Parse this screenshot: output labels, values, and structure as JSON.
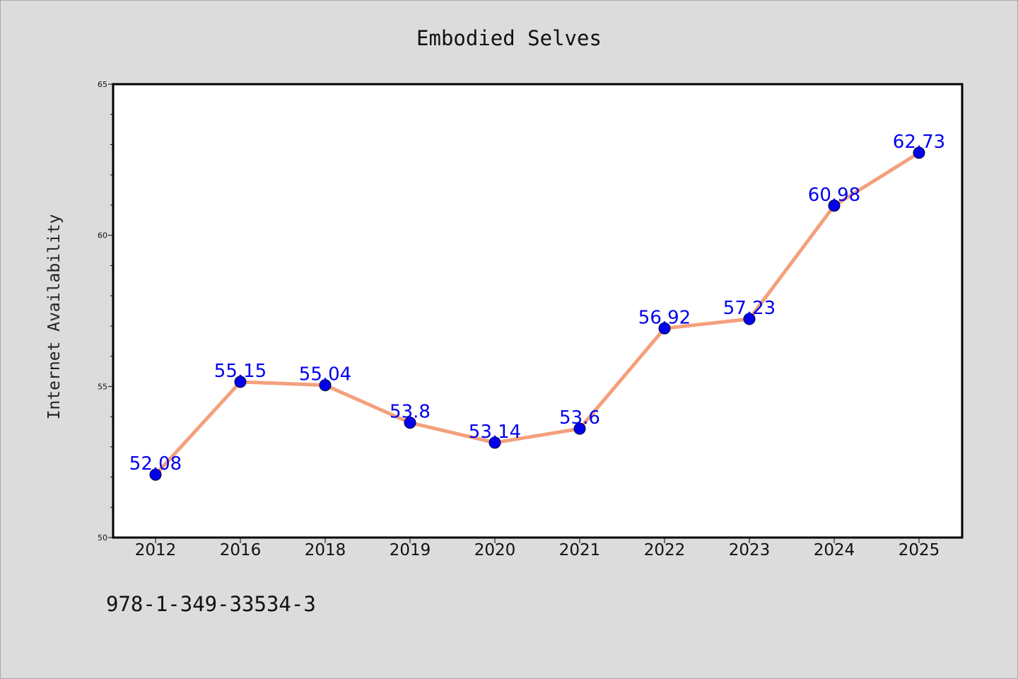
{
  "chart_data": {
    "type": "line",
    "title": "Embodied Selves",
    "xlabel": "",
    "ylabel": "Internet Availability",
    "categories": [
      "2012",
      "2016",
      "2018",
      "2019",
      "2020",
      "2021",
      "2022",
      "2023",
      "2024",
      "2025"
    ],
    "series": [
      {
        "values": [
          52.08,
          55.15,
          55.04,
          53.8,
          53.14,
          53.6,
          56.92,
          57.23,
          60.98,
          62.73
        ],
        "data_labels": [
          "52.08",
          "55.15",
          "55.04",
          "53.8",
          "53.14",
          "53.6",
          "56.92",
          "57.23",
          "60.98",
          "62.73"
        ]
      }
    ],
    "ylim": [
      50,
      65
    ],
    "yticks": [
      "50",
      "55",
      "60",
      "65"
    ],
    "grid": false,
    "legend": "none",
    "colors": {
      "line": "#f4a07c",
      "marker": "#0000ee",
      "label": "#0000ee",
      "background": "#dcdcdc",
      "plot_bg": "#ffffff"
    }
  },
  "footer": {
    "isbn": "978-1-349-33534-3"
  }
}
